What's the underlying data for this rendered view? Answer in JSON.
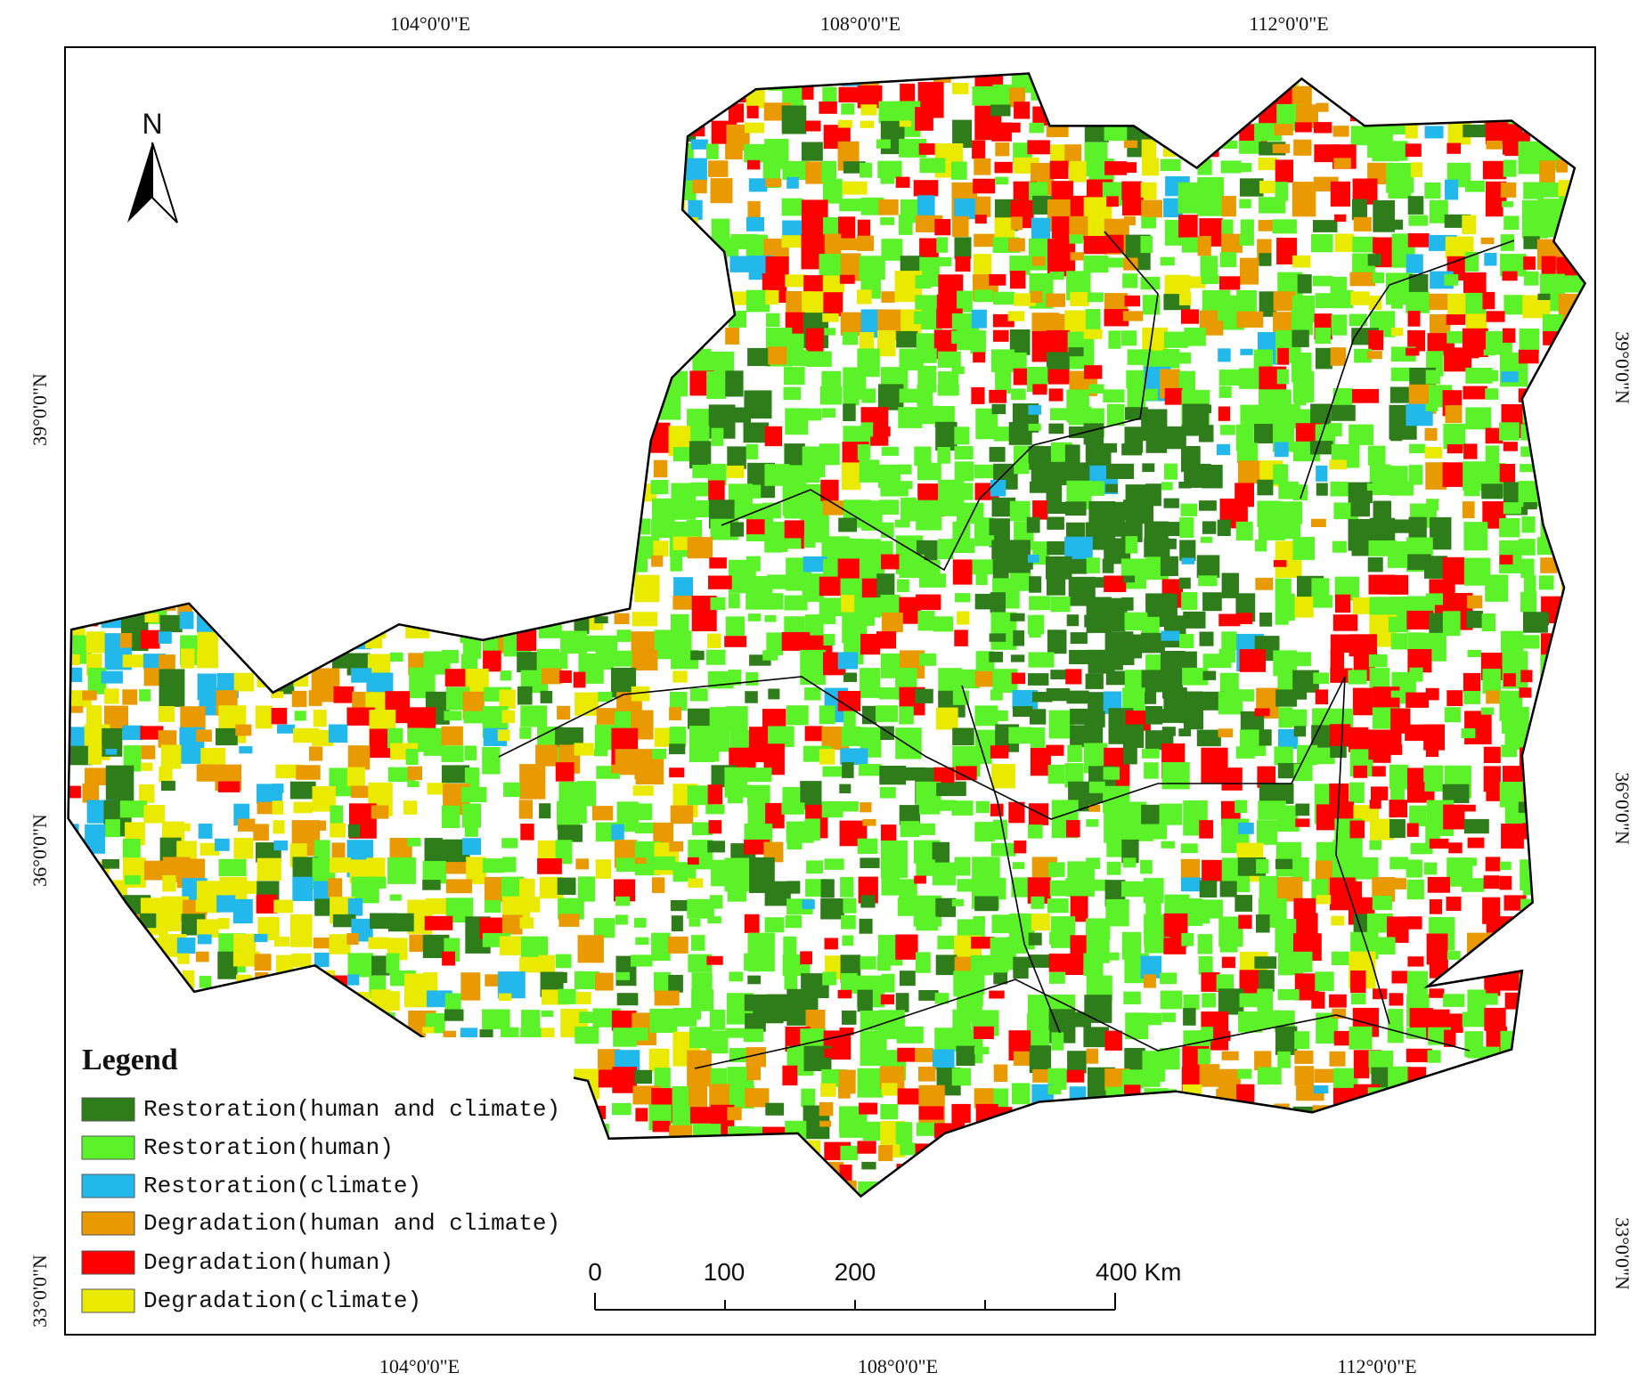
{
  "map": {
    "graticule_labels": {
      "top": [
        "104°0'0\"E",
        "108°0'0\"E",
        "112°0'0\"E"
      ],
      "bottom": [
        "104°0'0\"E",
        "108°0'0\"E",
        "112°0'0\"E"
      ],
      "left": [
        "39°0'0\"N",
        "36°0'0\"N",
        "33°0'0\"N"
      ],
      "right": [
        "39°0'0\"N",
        "36°0'0\"N",
        "33°0'0\"N"
      ]
    },
    "north_arrow": "N",
    "legend": {
      "title": "Legend",
      "items": [
        {
          "label": "Restoration(human and climate)",
          "color": "#2e7d1a"
        },
        {
          "label": "Restoration(human)",
          "color": "#5cf22a"
        },
        {
          "label": "Restoration(climate)",
          "color": "#22b8ec"
        },
        {
          "label": "Degradation(human and climate)",
          "color": "#e89a00"
        },
        {
          "label": "Degradation(human)",
          "color": "#ff0000"
        },
        {
          "label": "Degradation(climate)",
          "color": "#eaea00"
        }
      ]
    },
    "scale_bar": [
      "0",
      "100",
      "200",
      "400 Km"
    ]
  }
}
